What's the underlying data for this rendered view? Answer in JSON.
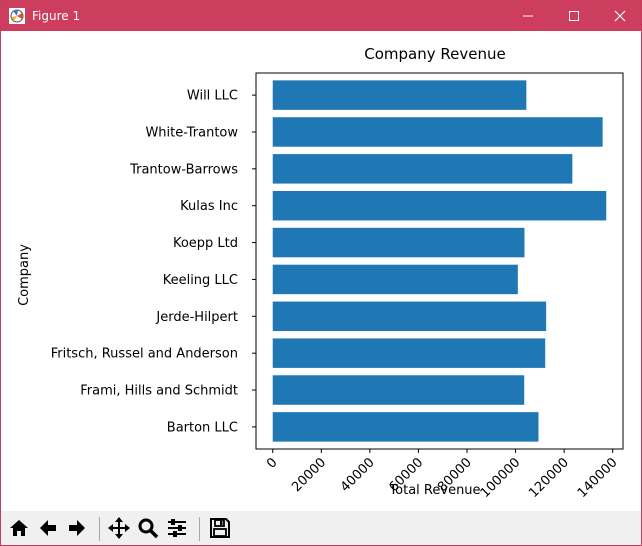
{
  "window": {
    "title": "Figure 1",
    "icons": {
      "app": "matplotlib-figure-icon",
      "minimize": "minimize-icon",
      "maximize": "maximize-icon",
      "close": "close-icon"
    }
  },
  "toolbar": {
    "buttons": [
      "home-icon",
      "back-arrow-icon",
      "forward-arrow-icon",
      "pan-icon",
      "zoom-icon",
      "configure-subplots-icon",
      "save-icon"
    ]
  },
  "chart_data": {
    "type": "bar",
    "orientation": "horizontal",
    "title": "Company Revenue",
    "xlabel": "Total Revenue",
    "ylabel": "Company",
    "categories": [
      "Barton LLC",
      "Frami, Hills and Schmidt",
      "Fritsch, Russel and Anderson",
      "Jerde-Hilpert",
      "Keeling LLC",
      "Koepp Ltd",
      "Kulas Inc",
      "Trantow-Barrows",
      "White-Trantow",
      "Will LLC"
    ],
    "values": [
      109438,
      103569,
      112214,
      112591,
      100934,
      103660,
      137351,
      123381,
      135841,
      104437
    ],
    "xlim": [
      -6890,
      144240
    ],
    "xticks": [
      "0",
      "20000",
      "40000",
      "60000",
      "80000",
      "100000",
      "120000",
      "140000"
    ],
    "grid": false,
    "bar_color": "#1f77b4"
  }
}
